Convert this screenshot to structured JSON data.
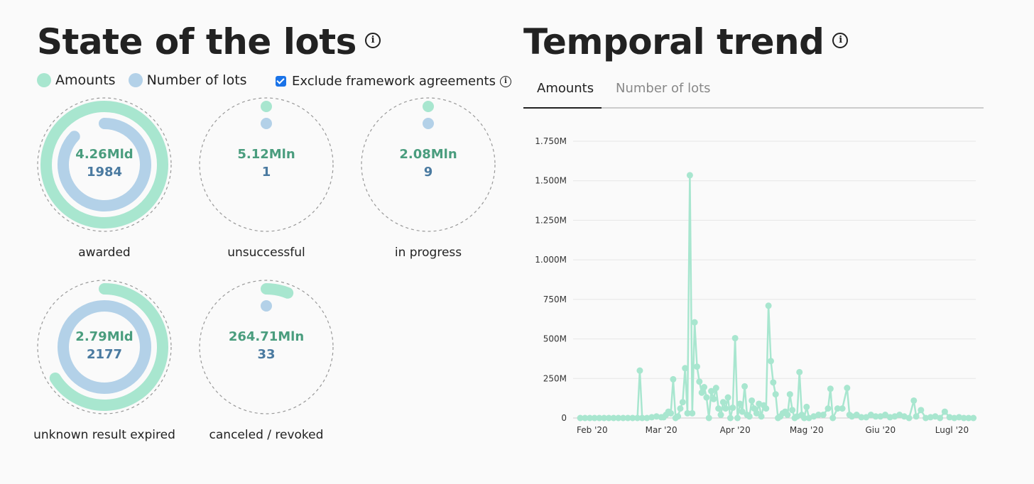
{
  "left": {
    "title": "State of the lots",
    "legend": {
      "amounts": "Amounts",
      "lots": "Number of lots"
    },
    "checkbox": {
      "label": "Exclude framework agreements",
      "checked": true
    },
    "donuts": [
      {
        "label": "awarded",
        "amount": "4.26Mld",
        "count": "1984",
        "amount_fraction": 1.0,
        "count_fraction": 0.87
      },
      {
        "label": "unsuccessful",
        "amount": "5.12Mln",
        "count": "1",
        "amount_fraction": 0.0,
        "count_fraction": 0.0
      },
      {
        "label": "in progress",
        "amount": "2.08Mln",
        "count": "9",
        "amount_fraction": 0.0,
        "count_fraction": 0.0
      },
      {
        "label": "unknown result expired",
        "amount": "2.79Mld",
        "count": "2177",
        "amount_fraction": 0.66,
        "count_fraction": 1.0
      },
      {
        "label": "canceled / revoked",
        "amount": "264.71Mln",
        "count": "33",
        "amount_fraction": 0.06,
        "count_fraction": 0.0
      }
    ]
  },
  "right": {
    "title": "Temporal trend",
    "tabs": [
      {
        "label": "Amounts",
        "active": true
      },
      {
        "label": "Number of lots",
        "active": false
      }
    ]
  },
  "colors": {
    "amounts": "#a8e6cf",
    "lots": "#b3d1e8",
    "line": "#a8e6cf"
  },
  "chart_data": {
    "type": "line",
    "title": "",
    "xlabel": "",
    "ylabel": "",
    "ylim": [
      0,
      1750
    ],
    "yunit": "M",
    "yticks": [
      0,
      250,
      500,
      750,
      1000,
      1250,
      1500,
      1750
    ],
    "ytick_labels": [
      "0",
      "250M",
      "500M",
      "750M",
      "1.000M",
      "1.250M",
      "1.500M",
      "1.750M"
    ],
    "xlim": [
      "2020-01-24",
      "2020-07-11"
    ],
    "xticks": [
      {
        "date": "2020-02-01",
        "label": "Feb '20"
      },
      {
        "date": "2020-03-01",
        "label": "Mar '20"
      },
      {
        "date": "2020-04-01",
        "label": "Apr '20"
      },
      {
        "date": "2020-05-01",
        "label": "Mag '20"
      },
      {
        "date": "2020-06-01",
        "label": "Giu '20"
      },
      {
        "date": "2020-07-01",
        "label": "Lugl '20"
      }
    ],
    "grid": true,
    "series": [
      {
        "values": [
          [
            "2020-01-27",
            0
          ],
          [
            "2020-01-29",
            0
          ],
          [
            "2020-01-31",
            0
          ],
          [
            "2020-02-02",
            0
          ],
          [
            "2020-02-04",
            0
          ],
          [
            "2020-02-06",
            0
          ],
          [
            "2020-02-08",
            0
          ],
          [
            "2020-02-10",
            0
          ],
          [
            "2020-02-12",
            0
          ],
          [
            "2020-02-14",
            0
          ],
          [
            "2020-02-16",
            0
          ],
          [
            "2020-02-18",
            0
          ],
          [
            "2020-02-20",
            0
          ],
          [
            "2020-02-21",
            300
          ],
          [
            "2020-02-22",
            0
          ],
          [
            "2020-02-24",
            0
          ],
          [
            "2020-02-26",
            5
          ],
          [
            "2020-02-28",
            10
          ],
          [
            "2020-03-01",
            5
          ],
          [
            "2020-03-02",
            5
          ],
          [
            "2020-03-03",
            20
          ],
          [
            "2020-03-04",
            40
          ],
          [
            "2020-03-05",
            30
          ],
          [
            "2020-03-06",
            245
          ],
          [
            "2020-03-07",
            0
          ],
          [
            "2020-03-08",
            10
          ],
          [
            "2020-03-09",
            60
          ],
          [
            "2020-03-10",
            100
          ],
          [
            "2020-03-11",
            315
          ],
          [
            "2020-03-12",
            30
          ],
          [
            "2020-03-13",
            1535
          ],
          [
            "2020-03-14",
            30
          ],
          [
            "2020-03-15",
            605
          ],
          [
            "2020-03-16",
            325
          ],
          [
            "2020-03-17",
            230
          ],
          [
            "2020-03-18",
            160
          ],
          [
            "2020-03-19",
            195
          ],
          [
            "2020-03-20",
            130
          ],
          [
            "2020-03-21",
            0
          ],
          [
            "2020-03-22",
            170
          ],
          [
            "2020-03-23",
            120
          ],
          [
            "2020-03-24",
            190
          ],
          [
            "2020-03-25",
            60
          ],
          [
            "2020-03-26",
            20
          ],
          [
            "2020-03-27",
            100
          ],
          [
            "2020-03-28",
            60
          ],
          [
            "2020-03-29",
            130
          ],
          [
            "2020-03-30",
            0
          ],
          [
            "2020-03-31",
            65
          ],
          [
            "2020-04-01",
            505
          ],
          [
            "2020-04-02",
            0
          ],
          [
            "2020-04-03",
            90
          ],
          [
            "2020-04-04",
            40
          ],
          [
            "2020-04-05",
            200
          ],
          [
            "2020-04-06",
            20
          ],
          [
            "2020-04-07",
            10
          ],
          [
            "2020-04-08",
            110
          ],
          [
            "2020-04-09",
            60
          ],
          [
            "2020-04-10",
            30
          ],
          [
            "2020-04-11",
            90
          ],
          [
            "2020-04-12",
            10
          ],
          [
            "2020-04-13",
            80
          ],
          [
            "2020-04-14",
            60
          ],
          [
            "2020-04-15",
            710
          ],
          [
            "2020-04-16",
            360
          ],
          [
            "2020-04-17",
            225
          ],
          [
            "2020-04-18",
            150
          ],
          [
            "2020-04-19",
            0
          ],
          [
            "2020-04-20",
            10
          ],
          [
            "2020-04-21",
            30
          ],
          [
            "2020-04-22",
            40
          ],
          [
            "2020-04-23",
            20
          ],
          [
            "2020-04-24",
            150
          ],
          [
            "2020-04-25",
            50
          ],
          [
            "2020-04-26",
            0
          ],
          [
            "2020-04-27",
            10
          ],
          [
            "2020-04-28",
            290
          ],
          [
            "2020-04-29",
            20
          ],
          [
            "2020-04-30",
            0
          ],
          [
            "2020-05-01",
            70
          ],
          [
            "2020-05-02",
            0
          ],
          [
            "2020-05-04",
            10
          ],
          [
            "2020-05-06",
            20
          ],
          [
            "2020-05-08",
            20
          ],
          [
            "2020-05-10",
            60
          ],
          [
            "2020-05-11",
            185
          ],
          [
            "2020-05-12",
            0
          ],
          [
            "2020-05-14",
            60
          ],
          [
            "2020-05-16",
            60
          ],
          [
            "2020-05-18",
            190
          ],
          [
            "2020-05-19",
            20
          ],
          [
            "2020-05-20",
            10
          ],
          [
            "2020-05-22",
            20
          ],
          [
            "2020-05-24",
            5
          ],
          [
            "2020-05-26",
            5
          ],
          [
            "2020-05-28",
            20
          ],
          [
            "2020-05-30",
            10
          ],
          [
            "2020-06-01",
            10
          ],
          [
            "2020-06-03",
            20
          ],
          [
            "2020-06-05",
            5
          ],
          [
            "2020-06-07",
            10
          ],
          [
            "2020-06-09",
            20
          ],
          [
            "2020-06-11",
            10
          ],
          [
            "2020-06-13",
            0
          ],
          [
            "2020-06-15",
            110
          ],
          [
            "2020-06-16",
            10
          ],
          [
            "2020-06-18",
            50
          ],
          [
            "2020-06-20",
            0
          ],
          [
            "2020-06-22",
            5
          ],
          [
            "2020-06-24",
            10
          ],
          [
            "2020-06-26",
            0
          ],
          [
            "2020-06-28",
            40
          ],
          [
            "2020-06-30",
            5
          ],
          [
            "2020-07-02",
            0
          ],
          [
            "2020-07-04",
            5
          ],
          [
            "2020-07-06",
            0
          ],
          [
            "2020-07-08",
            0
          ],
          [
            "2020-07-10",
            0
          ]
        ]
      }
    ]
  }
}
